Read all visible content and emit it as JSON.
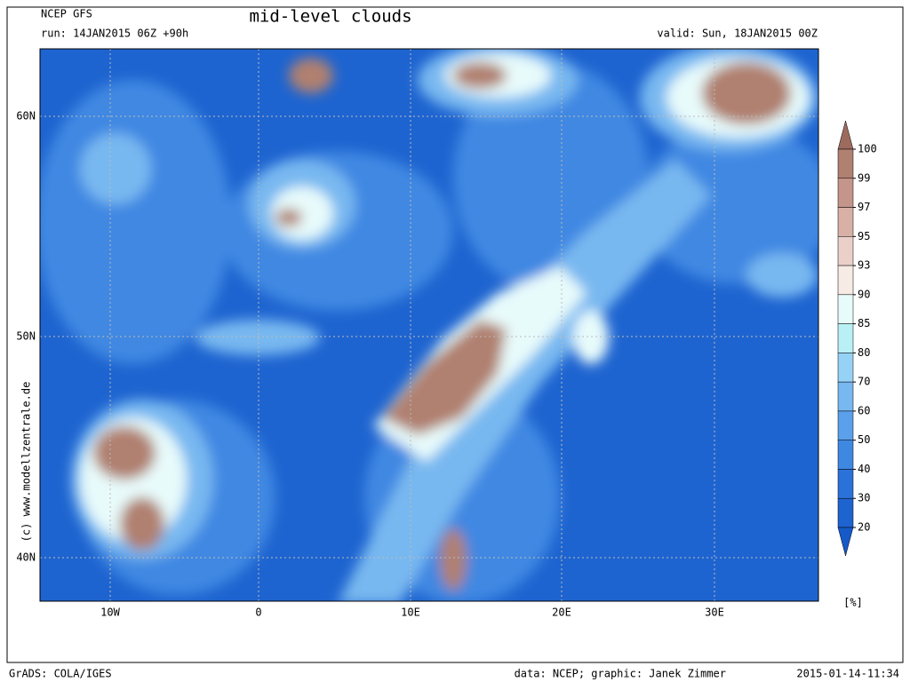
{
  "header": {
    "model": "NCEP GFS",
    "run": "run: 14JAN2015 06Z +90h",
    "title": "mid-level clouds",
    "valid": "valid: Sun, 18JAN2015 00Z"
  },
  "map": {
    "lat_labels": [
      "60N",
      "50N",
      "40N"
    ],
    "lon_labels": [
      "10W",
      "0",
      "10E",
      "20E",
      "30E"
    ],
    "credit": "(c) www.modellzentrale.de"
  },
  "colorbar": {
    "levels": [
      100,
      99,
      97,
      95,
      93,
      90,
      85,
      80,
      70,
      60,
      50,
      40,
      30,
      20
    ],
    "colors": [
      "#9c6b5e",
      "#b08070",
      "#c4958a",
      "#d8b0a5",
      "#ead0c8",
      "#f7ebe5",
      "#e8fbfb",
      "#b8f0f5",
      "#96d2f5",
      "#78b8f0",
      "#5aa0ea",
      "#3f88e2",
      "#2a72d8",
      "#1e64d0",
      "#155ac8"
    ],
    "unit": "[%]"
  },
  "footer": {
    "left": "GrADS: COLA/IGES",
    "center": "data: NCEP; graphic: Janek Zimmer",
    "right": "2015-01-14-11:34"
  }
}
